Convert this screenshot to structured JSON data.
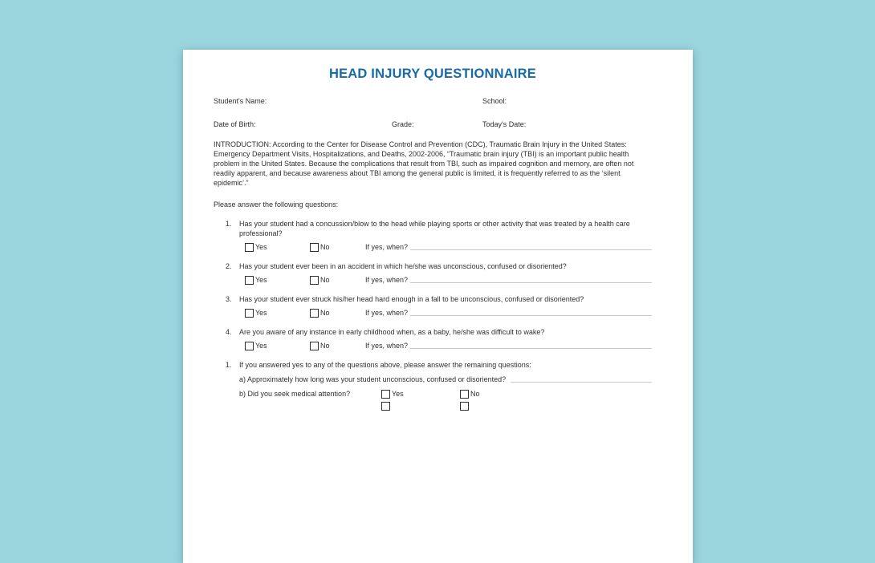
{
  "document": {
    "title": "HEAD INJURY QUESTIONNAIRE",
    "header_fields": {
      "student_name_label": "Student's Name:",
      "school_label": "School:",
      "date_of_birth_label": "Date of Birth:",
      "grade_label": "Grade:",
      "todays_date_label": "Today's Date:"
    },
    "introduction": "INTRODUCTION: According to the Center for Disease Control and Prevention (CDC), Traumatic Brain Injury in the United States: Emergency Department Visits, Hospitalizations, and Deaths, 2002-2006, “Traumatic brain injury (TBI) is an important public health problem in the United States. Because the complications that result from TBI, such as impaired cognition and memory, are often not readily apparent, and because awareness about TBI among the general public is limited, it is frequently referred to as the ‘silent epidemic’.”",
    "prompt": "Please answer the following questions:",
    "labels": {
      "yes": "Yes",
      "no": "No",
      "if_yes_when": "If yes, when?"
    },
    "questions": [
      {
        "number": "1.",
        "text": "Has your student had a concussion/blow to the head while playing sports or other activity that was treated by a health care professional?"
      },
      {
        "number": "2.",
        "text": "Has your student ever been in an accident in which he/she was unconscious, confused or disoriented?"
      },
      {
        "number": "3.",
        "text": "Has your student ever struck his/her head hard enough in a fall to be unconscious, confused or disoriented?"
      },
      {
        "number": "4.",
        "text": "Are you aware of any instance in early childhood when, as a baby, he/she was difficult to wake?"
      }
    ],
    "followup": {
      "number": "1.",
      "text": "If you answered yes to any of the questions above, please answer the remaining questions:",
      "item_a": "a) Approximately how long was your student unconscious, confused or disoriented?",
      "item_b": "b) Did you seek medical attention?"
    }
  },
  "colors": {
    "background": "#9BD6DD",
    "title": "#176BA4",
    "text": "#2F2F2F",
    "line": "#C6CAD0",
    "page": "#FFFFFF"
  }
}
